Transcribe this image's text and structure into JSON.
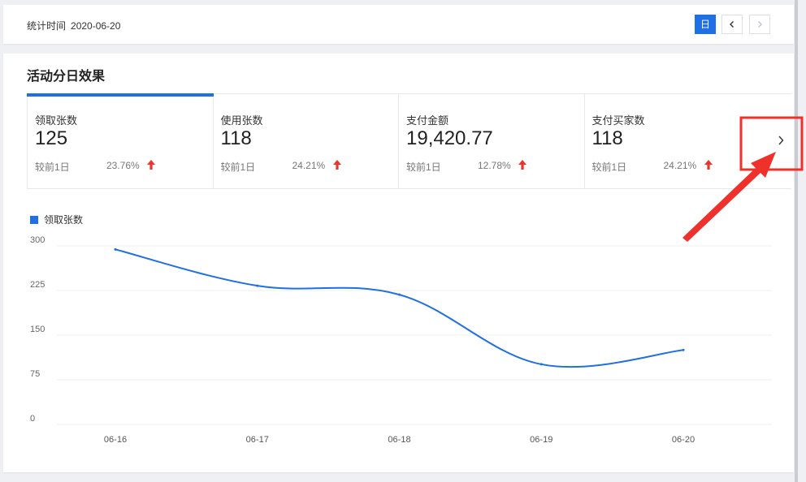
{
  "header": {
    "stat_time_label": "统计时间",
    "stat_time_value": "2020-06-20",
    "day_button": "日",
    "prev_icon": "chevron-left-icon",
    "next_icon": "chevron-right-icon"
  },
  "section": {
    "title": "活动分日效果"
  },
  "metrics": [
    {
      "label": "领取张数",
      "value": "125",
      "compare_label": "较前1日",
      "change": "23.76%",
      "trend": "up"
    },
    {
      "label": "使用张数",
      "value": "118",
      "compare_label": "较前1日",
      "change": "24.21%",
      "trend": "up"
    },
    {
      "label": "支付金额",
      "value": "19,420.77",
      "compare_label": "较前1日",
      "change": "12.78%",
      "trend": "up"
    },
    {
      "label": "支付买家数",
      "value": "118",
      "compare_label": "较前1日",
      "change": "24.21%",
      "trend": "up"
    }
  ],
  "colors": {
    "accent": "#1f6fe5",
    "up": "#e8352e",
    "annotation": "#f0302a"
  },
  "chart_data": {
    "type": "line",
    "categories": [
      "06-16",
      "06-17",
      "06-18",
      "06-19",
      "06-20"
    ],
    "series": [
      {
        "name": "领取张数",
        "values": [
          294,
          233,
          218,
          101,
          125
        ]
      }
    ],
    "yticks": [
      "300",
      "225",
      "150",
      "75",
      "0"
    ],
    "ylim": [
      0,
      300
    ],
    "grid": true,
    "legend": "top-left"
  }
}
